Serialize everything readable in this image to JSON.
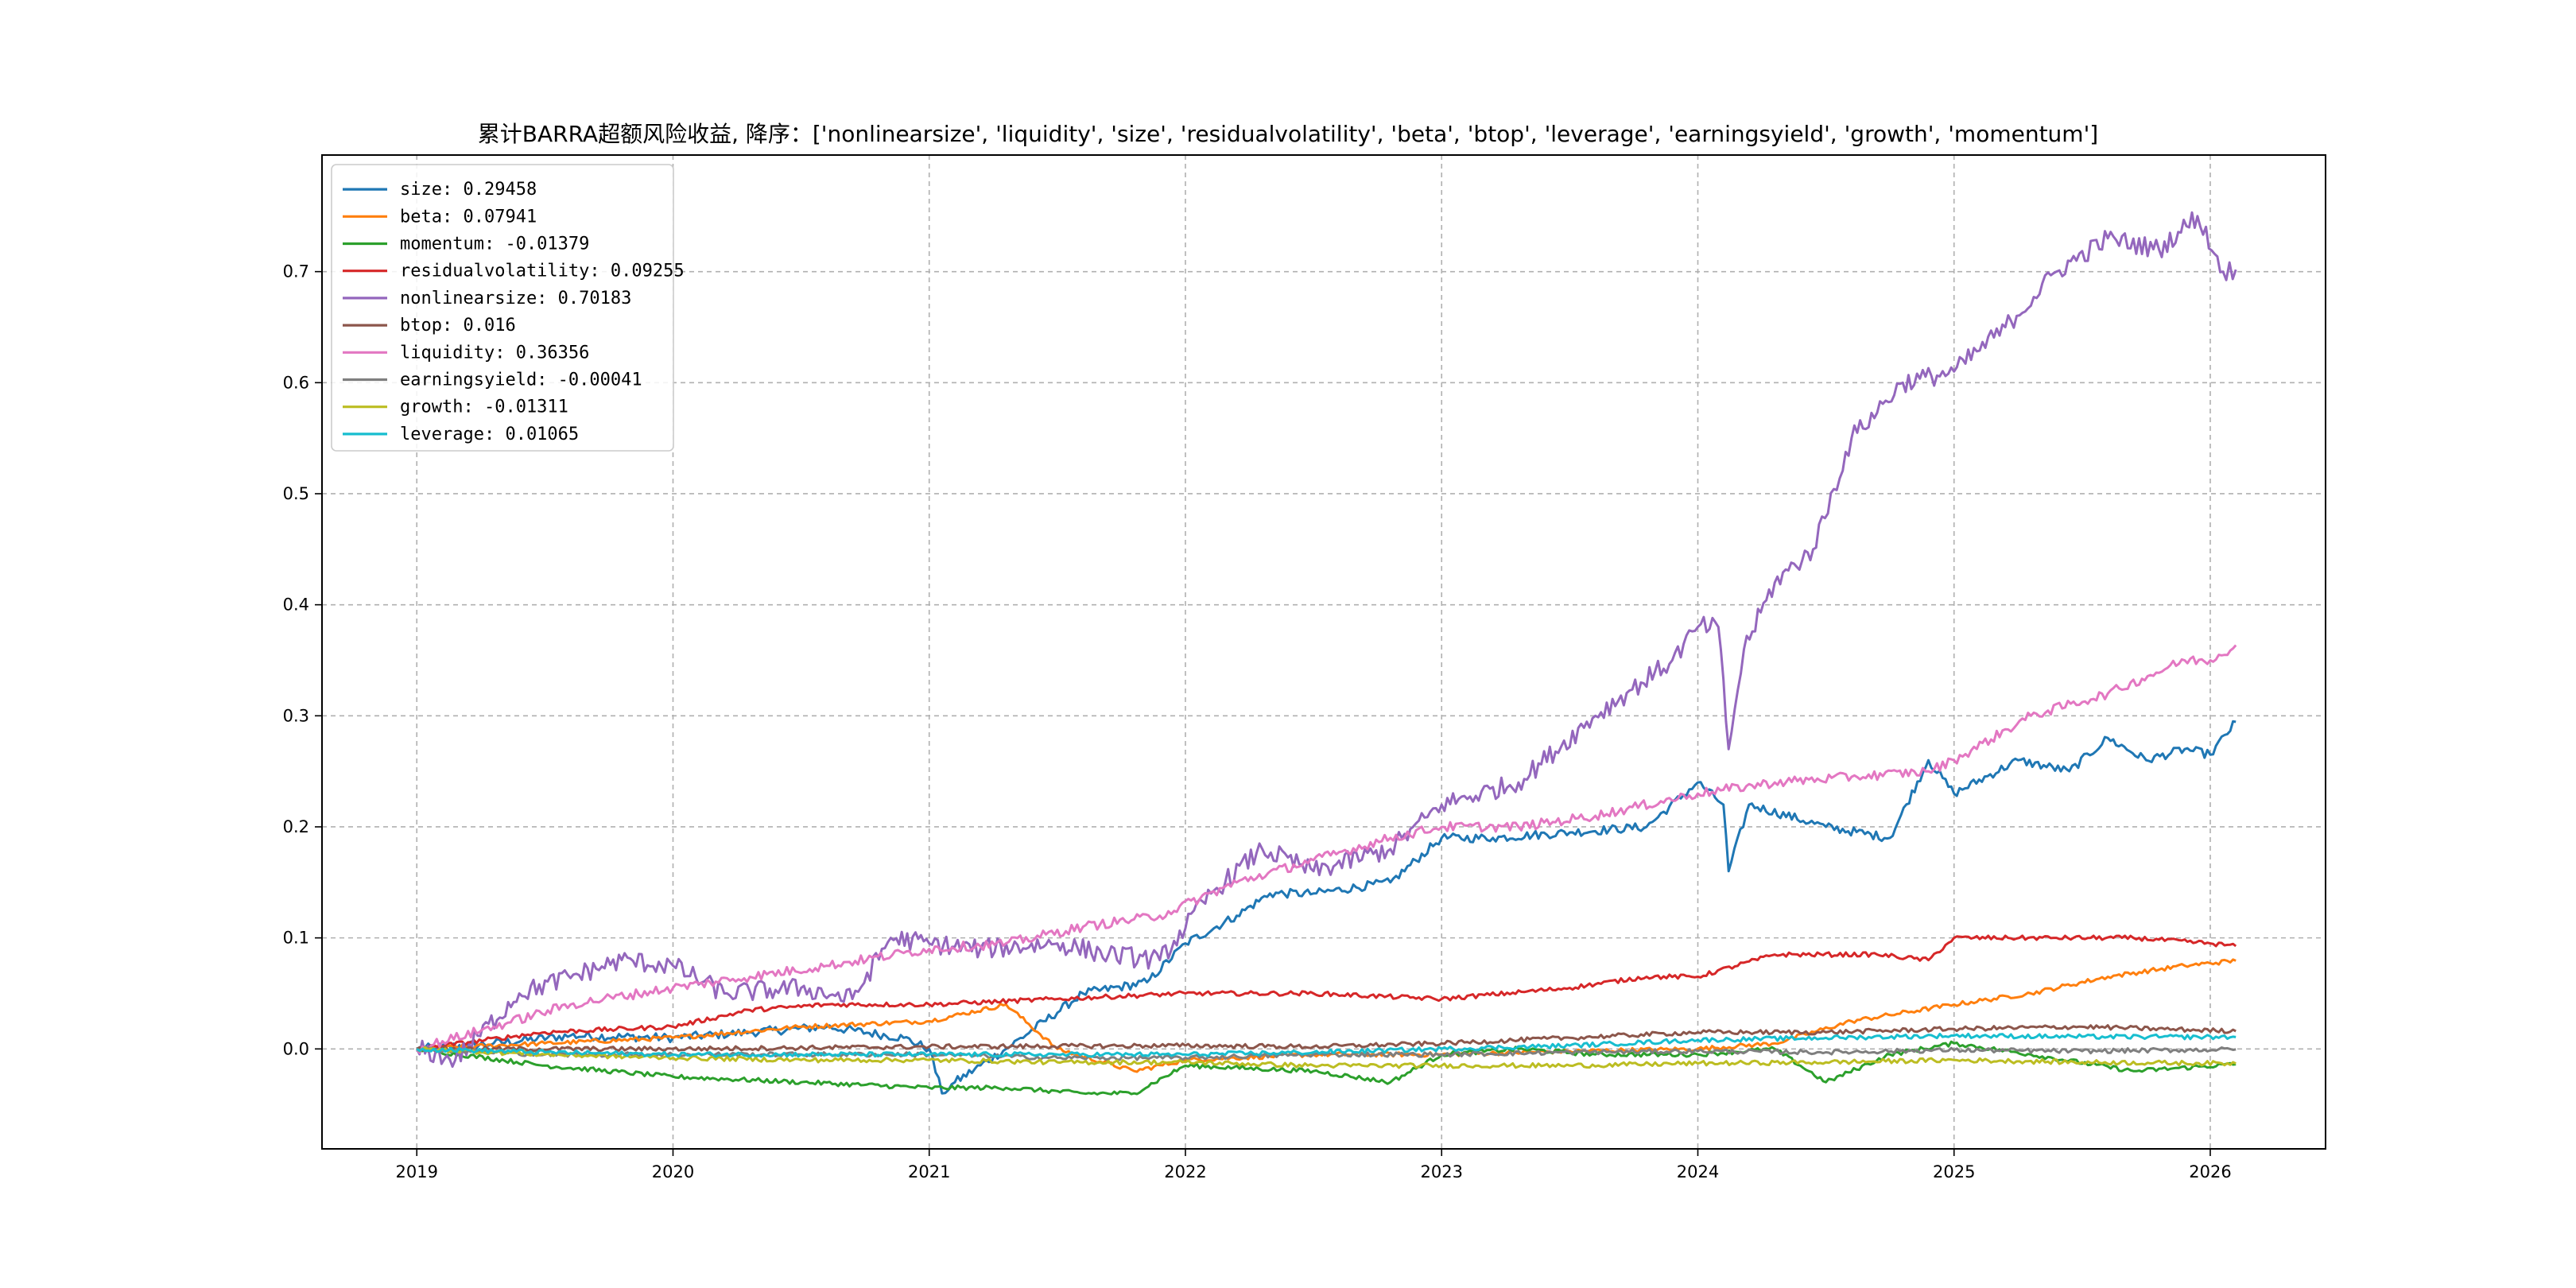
{
  "chart_data": {
    "type": "line",
    "title": "累计BARRA超额风险收益,  降序：['nonlinearsize', 'liquidity', 'size', 'residualvolatility', 'beta', 'btop', 'leverage', 'earningsyield', 'growth', 'momentum']",
    "xlabel": "",
    "ylabel": "",
    "xlim": [
      2018.63,
      2026.45
    ],
    "ylim": [
      -0.09,
      0.805
    ],
    "x_ticks": [
      2019,
      2020,
      2021,
      2022,
      2023,
      2024,
      2025,
      2026
    ],
    "x_tick_labels": [
      "2019",
      "2020",
      "2021",
      "2022",
      "2023",
      "2024",
      "2025",
      "2026"
    ],
    "y_ticks": [
      0.0,
      0.1,
      0.2,
      0.3,
      0.4,
      0.5,
      0.6,
      0.7
    ],
    "y_tick_labels": [
      "0.0",
      "0.1",
      "0.2",
      "0.3",
      "0.4",
      "0.5",
      "0.6",
      "0.7"
    ],
    "grid": true,
    "legend_position": "upper left",
    "series": [
      {
        "name": "size",
        "legend_label": "size: 0.29458",
        "color": "#1f77b4",
        "x": [
          2019.0,
          2019.3,
          2019.6,
          2020.0,
          2020.3,
          2020.6,
          2020.9,
          2021.0,
          2021.05,
          2021.1,
          2021.3,
          2021.6,
          2021.85,
          2022.0,
          2022.2,
          2022.33,
          2022.5,
          2022.8,
          2023.0,
          2023.2,
          2023.5,
          2023.8,
          2024.0,
          2024.1,
          2024.12,
          2024.2,
          2024.5,
          2024.75,
          2024.9,
          2025.0,
          2025.25,
          2025.45,
          2025.6,
          2025.75,
          2025.9,
          2026.0,
          2026.1
        ],
        "y": [
          0.0,
          0.005,
          0.012,
          0.01,
          0.015,
          0.02,
          0.01,
          0.0,
          -0.04,
          -0.03,
          0.0,
          0.05,
          0.06,
          0.095,
          0.12,
          0.14,
          0.14,
          0.15,
          0.19,
          0.19,
          0.195,
          0.2,
          0.24,
          0.22,
          0.16,
          0.22,
          0.2,
          0.19,
          0.26,
          0.23,
          0.26,
          0.25,
          0.28,
          0.26,
          0.27,
          0.265,
          0.29458
        ]
      },
      {
        "name": "beta",
        "legend_label": "beta: 0.07941",
        "color": "#ff7f0e",
        "x": [
          2019.0,
          2019.5,
          2020.0,
          2020.5,
          2021.0,
          2021.3,
          2021.5,
          2021.8,
          2022.0,
          2022.5,
          2023.0,
          2023.5,
          2024.0,
          2024.3,
          2024.6,
          2025.0,
          2025.3,
          2025.6,
          2025.9,
          2026.1
        ],
        "y": [
          0.0,
          0.005,
          0.01,
          0.02,
          0.025,
          0.04,
          0.0,
          -0.02,
          -0.01,
          -0.005,
          -0.005,
          -0.002,
          0.0,
          0.005,
          0.025,
          0.04,
          0.05,
          0.065,
          0.075,
          0.07941
        ]
      },
      {
        "name": "momentum",
        "legend_label": "momentum: -0.01379",
        "color": "#2ca02c",
        "x": [
          2019.0,
          2019.5,
          2020.0,
          2020.5,
          2021.0,
          2021.3,
          2021.6,
          2021.8,
          2022.0,
          2022.5,
          2022.8,
          2023.0,
          2023.3,
          2023.6,
          2024.0,
          2024.3,
          2024.5,
          2024.75,
          2025.0,
          2025.3,
          2025.7,
          2026.1
        ],
        "y": [
          0.0,
          -0.015,
          -0.025,
          -0.03,
          -0.035,
          -0.035,
          -0.04,
          -0.04,
          -0.015,
          -0.02,
          -0.03,
          -0.005,
          0.0,
          -0.005,
          -0.005,
          0.0,
          -0.03,
          -0.005,
          0.005,
          -0.005,
          -0.02,
          -0.01379
        ]
      },
      {
        "name": "residualvolatility",
        "legend_label": "residualvolatility: 0.09255",
        "color": "#d62728",
        "x": [
          2019.0,
          2019.5,
          2020.0,
          2020.3,
          2020.6,
          2021.0,
          2021.5,
          2022.0,
          2022.5,
          2023.0,
          2023.5,
          2023.8,
          2024.0,
          2024.3,
          2024.7,
          2024.9,
          2025.0,
          2025.4,
          2025.7,
          2026.0,
          2026.1
        ],
        "y": [
          0.0,
          0.015,
          0.02,
          0.035,
          0.04,
          0.04,
          0.045,
          0.05,
          0.05,
          0.045,
          0.055,
          0.065,
          0.065,
          0.085,
          0.085,
          0.08,
          0.1,
          0.1,
          0.1,
          0.095,
          0.09255
        ]
      },
      {
        "name": "nonlinearsize",
        "legend_label": "nonlinearsize: 0.70183",
        "color": "#9467bd",
        "x": [
          2019.0,
          2019.15,
          2019.4,
          2019.8,
          2020.0,
          2020.2,
          2020.5,
          2020.7,
          2020.85,
          2021.0,
          2021.2,
          2021.5,
          2021.7,
          2021.9,
          2022.1,
          2022.3,
          2022.5,
          2022.8,
          2023.0,
          2023.3,
          2023.6,
          2023.9,
          2024.0,
          2024.08,
          2024.12,
          2024.18,
          2024.3,
          2024.45,
          2024.6,
          2024.8,
          2025.0,
          2025.2,
          2025.4,
          2025.6,
          2025.8,
          2025.95,
          2026.05,
          2026.1
        ],
        "y": [
          0.0,
          -0.01,
          0.05,
          0.08,
          0.075,
          0.05,
          0.055,
          0.045,
          0.1,
          0.095,
          0.09,
          0.095,
          0.085,
          0.08,
          0.14,
          0.18,
          0.16,
          0.18,
          0.22,
          0.24,
          0.3,
          0.35,
          0.38,
          0.38,
          0.27,
          0.36,
          0.42,
          0.45,
          0.55,
          0.6,
          0.61,
          0.65,
          0.7,
          0.73,
          0.72,
          0.75,
          0.7,
          0.70183
        ]
      },
      {
        "name": "btop",
        "legend_label": "btop: 0.016",
        "color": "#8c564b",
        "x": [
          2019.0,
          2020.0,
          2021.0,
          2022.0,
          2022.5,
          2023.0,
          2023.5,
          2024.0,
          2024.5,
          2025.0,
          2025.5,
          2026.1
        ],
        "y": [
          0.0,
          0.0,
          0.002,
          0.003,
          0.002,
          0.005,
          0.01,
          0.015,
          0.015,
          0.018,
          0.02,
          0.016
        ]
      },
      {
        "name": "liquidity",
        "legend_label": "liquidity: 0.36356",
        "color": "#e377c2",
        "x": [
          2019.0,
          2019.3,
          2019.6,
          2020.0,
          2020.3,
          2020.6,
          2021.0,
          2021.3,
          2021.6,
          2021.9,
          2022.2,
          2022.5,
          2022.8,
          2023.0,
          2023.3,
          2023.6,
          2024.0,
          2024.3,
          2024.6,
          2024.9,
          2025.0,
          2025.3,
          2025.6,
          2025.9,
          2026.0,
          2026.1
        ],
        "y": [
          0.0,
          0.02,
          0.04,
          0.055,
          0.065,
          0.075,
          0.09,
          0.095,
          0.11,
          0.12,
          0.15,
          0.17,
          0.19,
          0.2,
          0.2,
          0.21,
          0.23,
          0.24,
          0.245,
          0.25,
          0.26,
          0.3,
          0.32,
          0.35,
          0.35,
          0.36356
        ]
      },
      {
        "name": "earningsyield",
        "legend_label": "earningsyield: -0.00041",
        "color": "#7f7f7f",
        "x": [
          2019.0,
          2019.5,
          2020.0,
          2020.5,
          2021.0,
          2021.5,
          2022.0,
          2022.5,
          2023.0,
          2023.5,
          2024.0,
          2024.5,
          2025.0,
          2025.5,
          2026.1
        ],
        "y": [
          0.0,
          -0.005,
          -0.005,
          -0.005,
          -0.005,
          -0.008,
          -0.008,
          -0.005,
          -0.005,
          -0.003,
          -0.002,
          -0.003,
          -0.001,
          -0.002,
          -0.00041
        ]
      },
      {
        "name": "growth",
        "legend_label": "growth: -0.01311",
        "color": "#bcbd22",
        "x": [
          2019.0,
          2019.5,
          2020.0,
          2020.5,
          2021.0,
          2021.5,
          2022.0,
          2022.5,
          2023.0,
          2023.5,
          2024.0,
          2024.5,
          2025.0,
          2025.5,
          2026.1
        ],
        "y": [
          0.0,
          -0.005,
          -0.008,
          -0.01,
          -0.01,
          -0.012,
          -0.012,
          -0.015,
          -0.015,
          -0.015,
          -0.013,
          -0.012,
          -0.01,
          -0.012,
          -0.01311
        ]
      },
      {
        "name": "leverage",
        "legend_label": "leverage: 0.01065",
        "color": "#17becf",
        "x": [
          2019.0,
          2019.5,
          2020.0,
          2020.5,
          2021.0,
          2021.5,
          2022.0,
          2022.5,
          2023.0,
          2023.5,
          2024.0,
          2024.5,
          2025.0,
          2025.5,
          2026.1
        ],
        "y": [
          0.0,
          -0.003,
          -0.005,
          -0.005,
          -0.005,
          -0.005,
          -0.005,
          -0.003,
          0.0,
          0.003,
          0.008,
          0.01,
          0.012,
          0.011,
          0.01065
        ]
      }
    ]
  }
}
